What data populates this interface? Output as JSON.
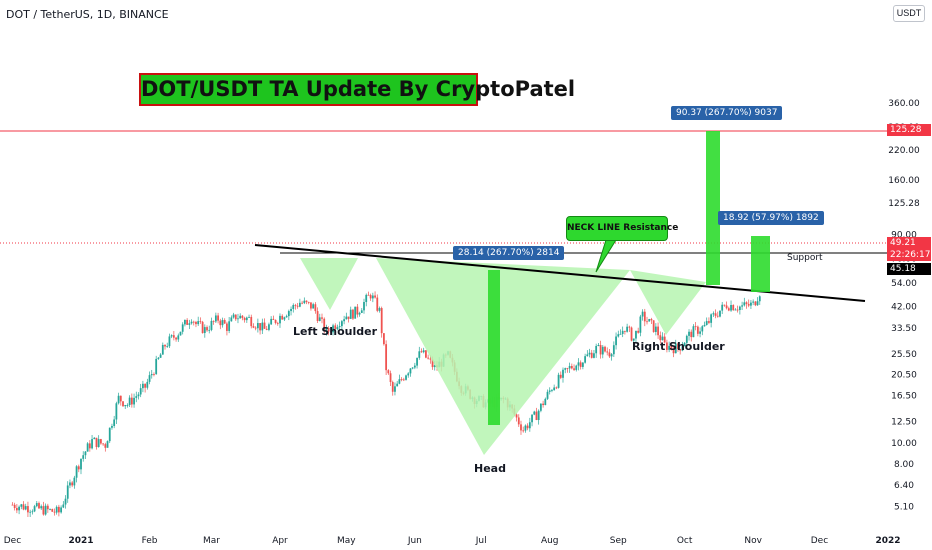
{
  "header": {
    "symbol": "DOT / TetherUS, 1D, BINANCE",
    "currency": "USDT",
    "title": "DOT/USDT TA Update By CryptoPatel"
  },
  "annotations": {
    "left_shoulder": "Left Shoulder",
    "head": "Head",
    "right_shoulder": "Right Shoulder",
    "neck_line": "NECK LINE Resistance",
    "support": "Support",
    "measure_pattern": "28.14 (267.70%) 2814",
    "measure_target": "90.37 (267.70%) 9037",
    "measure_breakout": "18.92 (57.97%) 1892"
  },
  "price_labels": {
    "target_line": "125.28",
    "last_price": "49.21",
    "countdown": "22:26:17",
    "support_price": "45.18"
  },
  "colors": {
    "up": "#26a69a",
    "down": "#ef5350",
    "pattern_fill": "#b6f5b0",
    "measure_fill": "#2edc2e",
    "target_line": "#f23645",
    "tag_blue": "#2962a8"
  },
  "chart_data": {
    "type": "candlestick",
    "scale": "log",
    "y_ticks": [
      5.1,
      6.4,
      8.0,
      10.0,
      12.5,
      16.5,
      20.5,
      25.5,
      33.5,
      42.0,
      54.0,
      70.0,
      90.0,
      125.28,
      160.0,
      220.0,
      280.0,
      360.0
    ],
    "y_tick_labels": [
      "5.10",
      "6.40",
      "8.00",
      "10.00",
      "12.50",
      "16.50",
      "20.50",
      "25.50",
      "33.50",
      "42.00",
      "54.00",
      "70.00",
      "90.00",
      "125.28",
      "160.00",
      "220.00",
      "280.00",
      "360.00"
    ],
    "x_tick_labels": [
      "Dec",
      "2021",
      "Feb",
      "Mar",
      "Apr",
      "May",
      "Jun",
      "Jul",
      "Aug",
      "Sep",
      "Oct",
      "Nov",
      "Dec",
      "2022"
    ],
    "close_path": [
      [
        "2020-12-01",
        5.2
      ],
      [
        "2020-12-12",
        5.0
      ],
      [
        "2020-12-22",
        4.8
      ],
      [
        "2021-01-01",
        8.5
      ],
      [
        "2021-01-06",
        10.2
      ],
      [
        "2021-01-12",
        9.8
      ],
      [
        "2021-01-18",
        16.0
      ],
      [
        "2021-01-22",
        15.0
      ],
      [
        "2021-01-30",
        18.0
      ],
      [
        "2021-02-05",
        24.0
      ],
      [
        "2021-02-08",
        28.0
      ],
      [
        "2021-02-14",
        32.0
      ],
      [
        "2021-02-20",
        38.0
      ],
      [
        "2021-02-22",
        35.0
      ],
      [
        "2021-02-26",
        33.0
      ],
      [
        "2021-03-04",
        37.0
      ],
      [
        "2021-03-08",
        34.0
      ],
      [
        "2021-03-12",
        38.0
      ],
      [
        "2021-03-18",
        37.0
      ],
      [
        "2021-03-25",
        33.0
      ],
      [
        "2021-04-01",
        38.0
      ],
      [
        "2021-04-10",
        44.0
      ],
      [
        "2021-04-16",
        42.0
      ],
      [
        "2021-04-22",
        32.0
      ],
      [
        "2021-04-30",
        38.0
      ],
      [
        "2021-05-06",
        40.0
      ],
      [
        "2021-05-12",
        48.0
      ],
      [
        "2021-05-16",
        40.0
      ],
      [
        "2021-05-19",
        22.0
      ],
      [
        "2021-05-22",
        17.0
      ],
      [
        "2021-05-28",
        21.0
      ],
      [
        "2021-06-04",
        26.0
      ],
      [
        "2021-06-10",
        22.0
      ],
      [
        "2021-06-16",
        25.0
      ],
      [
        "2021-06-22",
        18.0
      ],
      [
        "2021-06-28",
        16.0
      ],
      [
        "2021-07-04",
        15.0
      ],
      [
        "2021-07-12",
        15.8
      ],
      [
        "2021-07-20",
        11.5
      ],
      [
        "2021-07-26",
        13.5
      ],
      [
        "2021-08-02",
        18.0
      ],
      [
        "2021-08-10",
        22.0
      ],
      [
        "2021-08-16",
        24.0
      ],
      [
        "2021-08-22",
        27.0
      ],
      [
        "2021-08-28",
        26.0
      ],
      [
        "2021-09-04",
        34.0
      ],
      [
        "2021-09-08",
        30.0
      ],
      [
        "2021-09-12",
        38.0
      ],
      [
        "2021-09-18",
        33.0
      ],
      [
        "2021-09-22",
        28.0
      ],
      [
        "2021-09-28",
        27.0
      ],
      [
        "2021-10-04",
        32.0
      ],
      [
        "2021-10-10",
        34.0
      ],
      [
        "2021-10-14",
        38.0
      ],
      [
        "2021-10-20",
        43.0
      ],
      [
        "2021-10-26",
        42.0
      ],
      [
        "2021-11-01",
        43.0
      ],
      [
        "2021-11-04",
        49.21
      ]
    ]
  }
}
